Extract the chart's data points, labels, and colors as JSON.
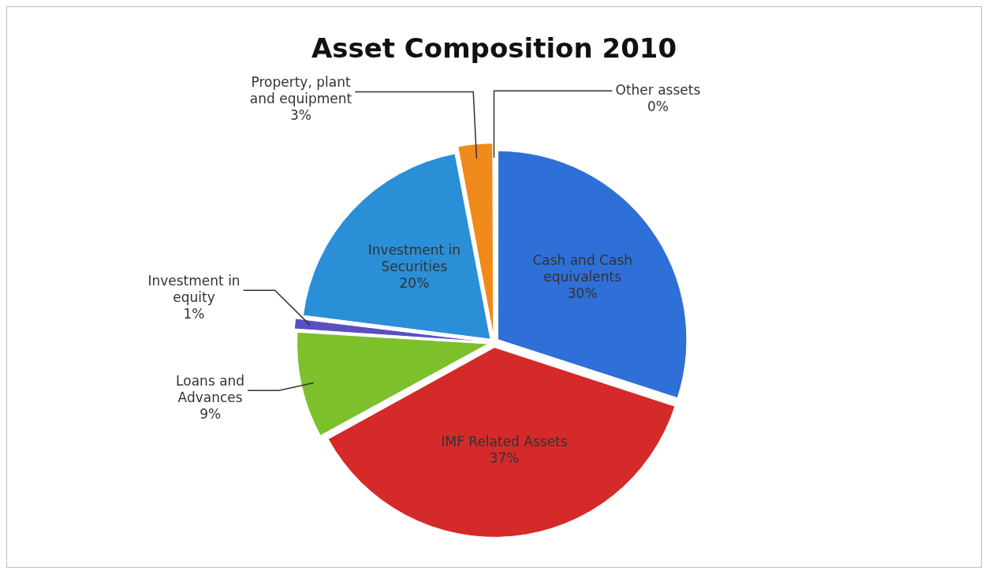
{
  "chart_data": {
    "type": "pie",
    "title": "Asset Composition 2010",
    "categories": [
      "Cash and Cash equivalents",
      "IMF Related Assets",
      "Loans and Advances",
      "Investment in equity",
      "Investment in Securities",
      "Property, plant and equipment",
      "Other assets"
    ],
    "values": [
      30,
      37,
      9,
      1,
      20,
      3,
      0
    ],
    "value_labels": [
      "30%",
      "37%",
      "9%",
      "1%",
      "20%",
      "3%",
      "0%"
    ],
    "colors": [
      "#2f6fd8",
      "#d42a2a",
      "#7cc02c",
      "#5a4fc0",
      "#2a8fd6",
      "#f08a1a",
      "#6070a0"
    ],
    "legend": false
  }
}
